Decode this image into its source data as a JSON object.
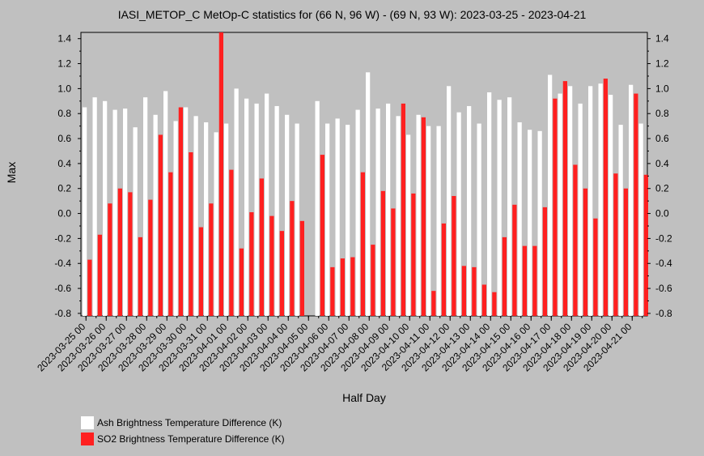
{
  "chart_data": {
    "type": "bar",
    "title": "IASI_METOP_C MetOp-C statistics for (66 N, 96 W) - (69 N, 93 W): 2023-03-25 - 2023-04-21",
    "xlabel": "Half Day",
    "ylabel": "Max",
    "ylim": [
      -0.82,
      1.45
    ],
    "yticks": [
      -0.8,
      -0.6,
      -0.4,
      -0.2,
      0.0,
      0.2,
      0.4,
      0.6,
      0.8,
      1.0,
      1.2,
      1.4
    ],
    "ytick_labels": [
      "-0.8",
      "-0.6",
      "-0.4",
      "-0.2",
      "0.0",
      "0.2",
      "0.4",
      "0.6",
      "0.8",
      "1.0",
      "1.2",
      "1.4"
    ],
    "x_tick_labels": [
      "2023-03-25 00",
      "2023-03-26 00",
      "2023-03-27 00",
      "2023-03-28 00",
      "2023-03-29 00",
      "2023-03-30 00",
      "2023-03-31 00",
      "2023-04-01 00",
      "2023-04-02 00",
      "2023-04-03 00",
      "2023-04-04 00",
      "2023-04-05 00",
      "2023-04-06 00",
      "2023-04-07 00",
      "2023-04-08 00",
      "2023-04-09 00",
      "2023-04-10 00",
      "2023-04-11 00",
      "2023-04-12 00",
      "2023-04-13 00",
      "2023-04-14 00",
      "2023-04-15 00",
      "2023-04-16 00",
      "2023-04-17 00",
      "2023-04-18 00",
      "2023-04-19 00",
      "2023-04-20 00",
      "2023-04-21 00"
    ],
    "legend_position": "bottom-left",
    "grid": false,
    "series": [
      {
        "name": "Ash Brightness Temperature Difference (K)",
        "color": "#ffffff",
        "values": [
          0.85,
          0.93,
          0.9,
          0.83,
          0.84,
          0.69,
          0.93,
          0.79,
          0.98,
          0.74,
          0.85,
          0.78,
          0.73,
          0.65,
          0.72,
          1.0,
          0.92,
          0.88,
          0.96,
          0.86,
          0.79,
          0.72,
          null,
          0.9,
          0.72,
          0.76,
          0.71,
          0.83,
          1.13,
          0.84,
          0.88,
          0.78,
          0.63,
          0.79,
          0.7,
          0.7,
          1.02,
          0.81,
          0.86,
          0.72,
          0.97,
          0.91,
          0.93,
          0.73,
          0.67,
          0.66,
          1.11,
          0.96,
          1.02,
          0.88,
          1.02,
          1.04,
          0.95,
          0.71,
          1.03,
          0.72
        ]
      },
      {
        "name": "SO2 Brightness Temperature Difference (K)",
        "color": "#ff2020",
        "values": [
          -0.37,
          -0.17,
          0.08,
          0.2,
          0.17,
          -0.19,
          0.11,
          0.63,
          0.33,
          0.85,
          0.49,
          -0.11,
          0.08,
          1.45,
          0.35,
          -0.28,
          0.01,
          0.28,
          -0.02,
          -0.14,
          0.1,
          -0.06,
          null,
          0.47,
          -0.43,
          -0.36,
          -0.35,
          0.33,
          -0.25,
          0.18,
          0.04,
          0.88,
          0.16,
          0.77,
          -0.62,
          -0.08,
          0.14,
          -0.42,
          -0.43,
          -0.57,
          -0.63,
          -0.19,
          0.07,
          -0.26,
          -0.26,
          0.05,
          0.92,
          1.06,
          0.39,
          0.2,
          -0.04,
          1.08,
          0.32,
          0.2,
          0.96,
          0.31
        ]
      }
    ]
  }
}
